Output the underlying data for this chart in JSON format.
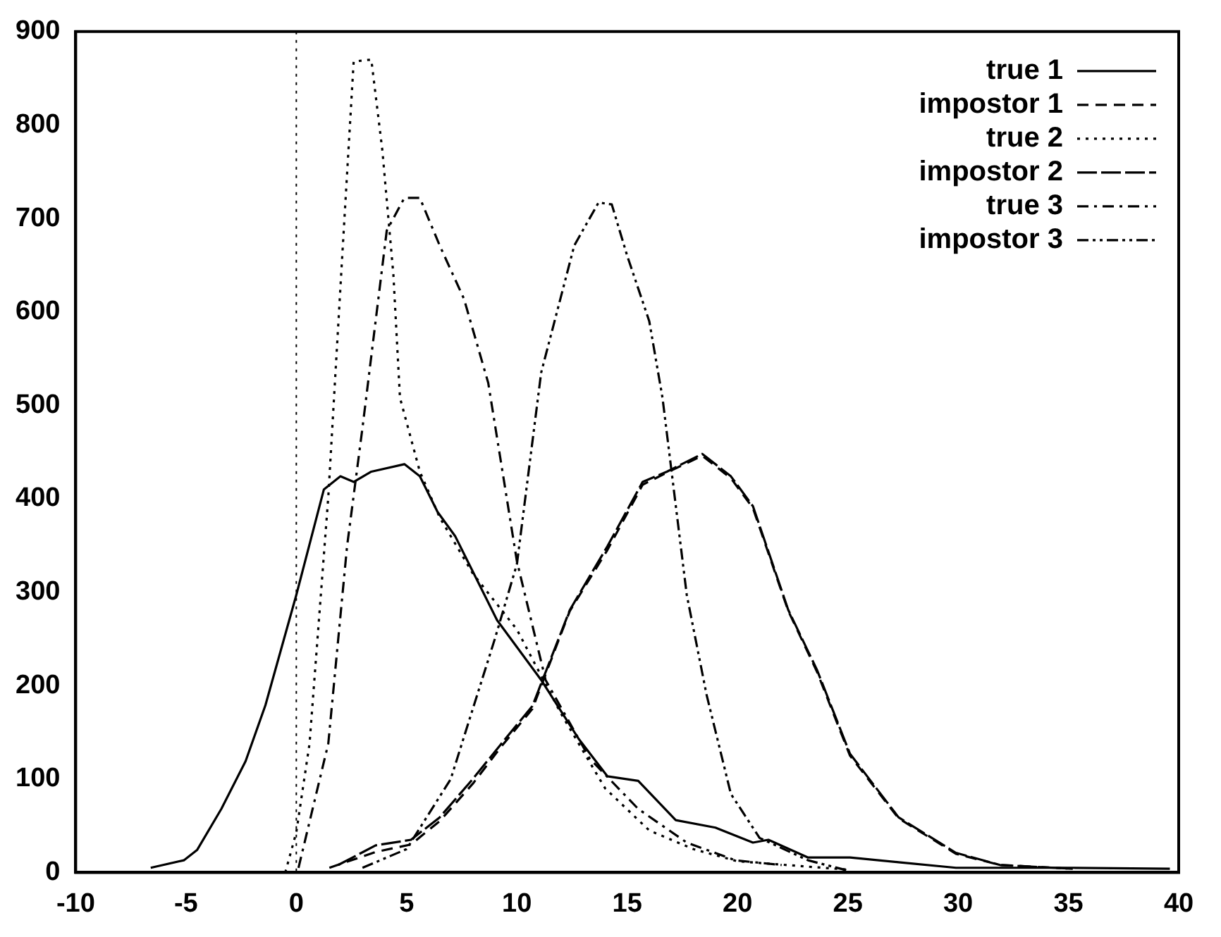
{
  "chart_data": {
    "type": "line",
    "xlim": [
      -10,
      40
    ],
    "xticks": [
      -10,
      -5,
      0,
      5,
      10,
      15,
      20,
      25,
      30,
      35,
      40
    ],
    "ylim": [
      0,
      900
    ],
    "yticks": [
      0,
      100,
      200,
      300,
      400,
      500,
      600,
      700,
      800,
      900
    ],
    "grid": false,
    "legend": "top right",
    "marker": "none",
    "ref_lines": [
      {
        "axis": "x",
        "value": 0,
        "line_style": "dotted",
        "color": "#000000"
      }
    ],
    "series": [
      {
        "name": "true 1",
        "color": "#000000",
        "line_style": "solid",
        "x": [
          -6.6,
          -5.1,
          -4.5,
          -3.4,
          -2.3,
          -1.4,
          -0.7,
          0,
          1.25,
          2,
          2.6,
          3.4,
          4.9,
          5.6,
          6.4,
          7.2,
          9.1,
          11.1,
          12.8,
          14.1,
          15.5,
          17.2,
          19,
          20.7,
          21.4,
          23.2,
          25.1,
          27.3,
          29.9,
          35.2,
          39.6
        ],
        "values": [
          5,
          13,
          24,
          68,
          119,
          179,
          238,
          297,
          410,
          424,
          418,
          429,
          437,
          424,
          386,
          360,
          270,
          206,
          143,
          103,
          98,
          56,
          48,
          32,
          35,
          16,
          16,
          11,
          5,
          5,
          4
        ]
      },
      {
        "name": "impostor 1",
        "color": "#000000",
        "line_style": "dashed",
        "x": [
          1.5,
          3.6,
          5.2,
          6.5,
          8,
          9.3,
          10.7,
          12.4,
          14.1,
          15.7,
          16.8,
          18.4,
          19.7,
          20.7,
          22.3,
          23.6,
          25.1,
          27.3,
          29.9,
          31.9,
          35.2
        ],
        "values": [
          5,
          22,
          30,
          55,
          95,
          135,
          175,
          280,
          345,
          415,
          428,
          446,
          422,
          390,
          280,
          215,
          125,
          58,
          20,
          8,
          4
        ]
      },
      {
        "name": "true 2",
        "color": "#000000",
        "line_style": "dotted",
        "x": [
          -0.5,
          0,
          0.6,
          1.45,
          2.1,
          2.6,
          3.4,
          3.9,
          4.4,
          4.7,
          5.6,
          6.5,
          8,
          10,
          12,
          14,
          16,
          18,
          20,
          25
        ],
        "values": [
          0,
          43,
          138,
          402,
          667,
          868,
          870,
          773,
          640,
          508,
          429,
          380,
          320,
          260,
          170,
          90,
          45,
          25,
          12,
          3
        ]
      },
      {
        "name": "impostor 2",
        "color": "#000000",
        "line_style": "longdash",
        "x": [
          1.9,
          3.6,
          5.2,
          6.5,
          8,
          9.3,
          10.7,
          12.4,
          14.1,
          15.7,
          16.8,
          18.4,
          19.7,
          20.7,
          22.3,
          23.6,
          25.1,
          27.3,
          29.9,
          31.9,
          35.2
        ],
        "values": [
          8,
          29,
          35,
          59,
          100,
          138,
          178,
          281,
          349,
          418,
          429,
          448,
          424,
          392,
          281,
          217,
          127,
          59,
          21,
          8,
          4
        ]
      },
      {
        "name": "true 3",
        "color": "#000000",
        "line_style": "dashdot",
        "x": [
          0.1,
          1.45,
          2.3,
          3,
          4.1,
          4.9,
          5.6,
          6.5,
          7.6,
          8.7,
          10,
          11.3,
          13.3,
          15.5,
          17.7,
          19.9,
          22
        ],
        "values": [
          5,
          138,
          349,
          476,
          687,
          722,
          722,
          671,
          614,
          524,
          333,
          206,
          122,
          68,
          32,
          13,
          8
        ]
      },
      {
        "name": "impostor 3",
        "color": "#000000",
        "line_style": "dashdotdot",
        "x": [
          3,
          5,
          7,
          9,
          10,
          11.1,
          12.6,
          13.7,
          14.3,
          15,
          16,
          16.6,
          17.7,
          18.6,
          19.7,
          21,
          23.2,
          25
        ],
        "values": [
          5,
          25,
          100,
          250,
          330,
          535,
          671,
          717,
          715,
          660,
          590,
          508,
          297,
          190,
          84,
          37,
          13,
          2
        ]
      }
    ]
  }
}
